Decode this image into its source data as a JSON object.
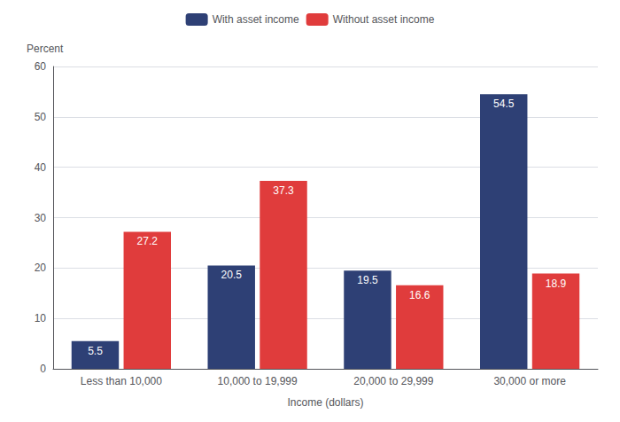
{
  "chart_data": {
    "type": "bar",
    "categories": [
      "Less than 10,000",
      "10,000 to 19,999",
      "20,000 to 29,999",
      "30,000 or more"
    ],
    "series": [
      {
        "name": "With asset income",
        "color": "#2E4075",
        "values": [
          5.5,
          20.5,
          19.5,
          54.5
        ]
      },
      {
        "name": "Without asset income",
        "color": "#E03C3C",
        "values": [
          27.2,
          37.3,
          16.6,
          18.9
        ]
      }
    ],
    "xlabel": "Income (dollars)",
    "ylabel": "Percent",
    "ylim": [
      0,
      60
    ],
    "yticks": [
      0,
      10,
      20,
      30,
      40,
      50,
      60
    ],
    "grid": true,
    "legend": "top",
    "data_labels": true
  }
}
